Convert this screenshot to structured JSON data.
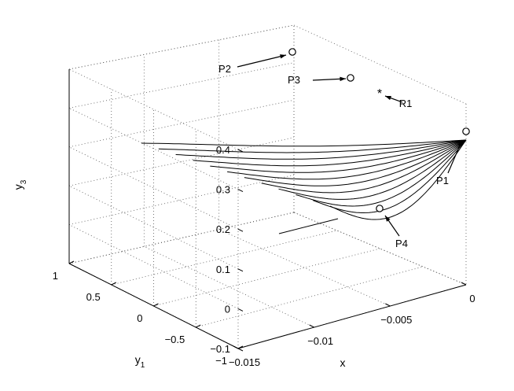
{
  "chart_data": {
    "type": "line",
    "projection": "3d",
    "grid": true,
    "box": true,
    "xlabel": "x",
    "ylabel": "y",
    "ylabel_sub": "1",
    "zlabel": "y",
    "zlabel_sub": "3",
    "xlim": [
      -0.015,
      0
    ],
    "ylim": [
      -1,
      1
    ],
    "zlim": [
      -0.1,
      0.4
    ],
    "xticks": [
      {
        "value": -0.015,
        "label": "−0.015"
      },
      {
        "value": -0.01,
        "label": "−0.01"
      },
      {
        "value": -0.005,
        "label": "−0.005"
      },
      {
        "value": 0,
        "label": "0"
      }
    ],
    "yticks": [
      {
        "value": -1,
        "label": "−1"
      },
      {
        "value": -0.5,
        "label": "−0.5"
      },
      {
        "value": 0,
        "label": "0"
      },
      {
        "value": 0.5,
        "label": "0.5"
      },
      {
        "value": 1,
        "label": "1"
      }
    ],
    "zticks": [
      {
        "value": -0.1,
        "label": "−0.1"
      },
      {
        "value": 0,
        "label": "0"
      },
      {
        "value": 0.1,
        "label": "0.1"
      },
      {
        "value": 0.2,
        "label": "0.2"
      },
      {
        "value": 0.3,
        "label": "0.3"
      },
      {
        "value": 0.4,
        "label": "0.4"
      }
    ],
    "trajectories": {
      "count": 12,
      "start_point": "P1",
      "description_points": "family of curves converging at P1"
    },
    "points": [
      {
        "name": "P1",
        "marker": "circle",
        "x": 0,
        "y": -1,
        "z": 0.3
      },
      {
        "name": "P2",
        "marker": "circle",
        "x": 0,
        "y": 1,
        "z": 0.3
      },
      {
        "name": "P3",
        "marker": "circle",
        "x": -0.002,
        "y": 0.4,
        "z": 0.25
      },
      {
        "name": "P4",
        "marker": "circle",
        "x": -0.004,
        "y": -0.4,
        "z": 0.02
      },
      {
        "name": "R1",
        "marker": "star",
        "x": -0.001,
        "y": 0.0,
        "z": 0.3
      }
    ]
  }
}
